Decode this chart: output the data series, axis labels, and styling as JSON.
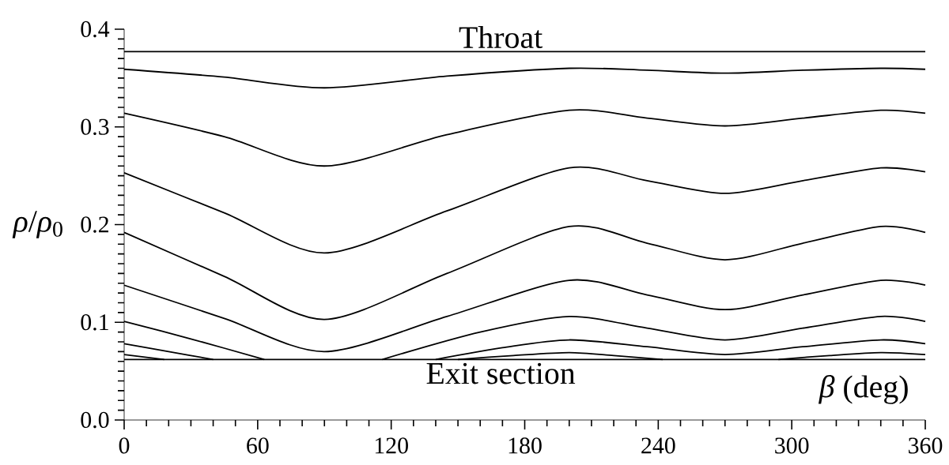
{
  "chart_data": {
    "type": "line",
    "xlabel": "*β* (deg)",
    "ylabel": "*ρ*/*ρ*$_{0}$",
    "x": [
      0,
      45,
      90,
      145,
      200,
      235,
      270,
      305,
      340,
      360
    ],
    "series": [
      {
        "color": "#000000",
        "values": [
          0.359,
          0.351,
          0.34,
          0.352,
          0.36,
          0.358,
          0.355,
          0.358,
          0.36,
          0.359
        ]
      },
      {
        "color": "#000000",
        "values": [
          0.314,
          0.29,
          0.26,
          0.292,
          0.317,
          0.309,
          0.301,
          0.309,
          0.317,
          0.314
        ]
      },
      {
        "color": "#000000",
        "values": [
          0.253,
          0.212,
          0.171,
          0.214,
          0.258,
          0.245,
          0.232,
          0.245,
          0.258,
          0.254
        ]
      },
      {
        "color": "#000000",
        "values": [
          0.192,
          0.147,
          0.103,
          0.15,
          0.198,
          0.181,
          0.164,
          0.181,
          0.198,
          0.192
        ]
      },
      {
        "color": "#000000",
        "values": [
          0.138,
          0.104,
          0.07,
          0.106,
          0.143,
          0.128,
          0.113,
          0.128,
          0.143,
          0.138
        ]
      },
      {
        "color": "#000000",
        "x": [
          0,
          30,
          63,
          90,
          116,
          160,
          200,
          235,
          270,
          305,
          340,
          360
        ],
        "values": [
          0.101,
          0.083,
          0.062,
          null,
          0.062,
          0.09,
          0.106,
          0.094,
          0.082,
          0.094,
          0.106,
          0.101
        ]
      },
      {
        "color": "#000000",
        "x": [
          0,
          20,
          40,
          90,
          140,
          170,
          200,
          235,
          270,
          305,
          340,
          360
        ],
        "values": [
          0.078,
          0.07,
          0.062,
          null,
          0.062,
          0.074,
          0.082,
          0.075,
          0.067,
          0.075,
          0.082,
          0.078
        ]
      },
      {
        "color": "#000000",
        "x": [
          0,
          18,
          90,
          150,
          175,
          200,
          220,
          242,
          270,
          294,
          317,
          340,
          360
        ],
        "values": [
          0.067,
          0.062,
          null,
          0.062,
          0.066,
          0.069,
          0.066,
          0.062,
          null,
          0.062,
          0.066,
          0.069,
          0.067
        ]
      }
    ],
    "ref_lines": [
      {
        "axis": "y",
        "value": 0.377,
        "label": "Throat",
        "color": "#000000"
      },
      {
        "axis": "y",
        "value": 0.062,
        "label": "Exit section",
        "color": "#000000"
      }
    ],
    "xlim": [
      0,
      360
    ],
    "ylim": [
      0,
      0.4
    ],
    "xticks": [
      0,
      60,
      120,
      180,
      240,
      300,
      360
    ],
    "yticks": [
      {
        "value": 0,
        "label": "0.0"
      },
      0.1,
      0.2,
      0.3,
      0.4
    ],
    "marker": "none"
  }
}
